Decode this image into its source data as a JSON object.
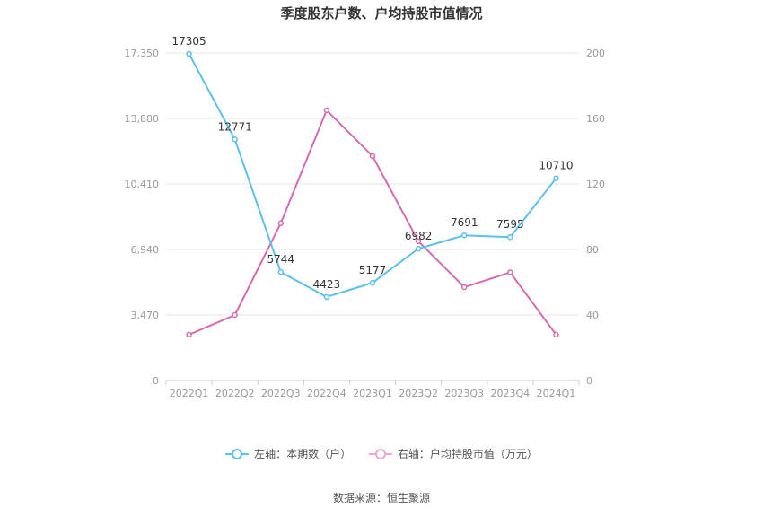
{
  "chart_data": {
    "type": "line",
    "title": "季度股东户数、户均持股市值情况",
    "categories": [
      "2022Q1",
      "2022Q2",
      "2022Q3",
      "2022Q4",
      "2023Q1",
      "2023Q2",
      "2023Q3",
      "2023Q4",
      "2024Q1"
    ],
    "left_axis": {
      "ticks": [
        "0",
        "3,470",
        "6,940",
        "10,410",
        "13,880",
        "17,350"
      ],
      "range": [
        0,
        17350
      ]
    },
    "right_axis": {
      "ticks": [
        "0",
        "40",
        "80",
        "120",
        "160",
        "200"
      ],
      "range": [
        0,
        200
      ]
    },
    "series": [
      {
        "name": "左轴：本期数（户）",
        "axis": "left",
        "color": "#5bc0eb",
        "values": [
          17305,
          12771,
          5744,
          4423,
          5177,
          6982,
          7691,
          7595,
          10710
        ],
        "labels": [
          "17305",
          "12771",
          "5744",
          "4423",
          "5177",
          "6982",
          "7691",
          "7595",
          "10710"
        ]
      },
      {
        "name": "右轴：户均持股市值（万元）",
        "axis": "right",
        "color": "#d66bb4",
        "values": [
          28,
          40,
          96,
          165,
          137,
          85,
          57,
          66,
          28
        ]
      }
    ],
    "grid": true,
    "legend_position": "bottom"
  },
  "source": "数据来源：恒生聚源"
}
